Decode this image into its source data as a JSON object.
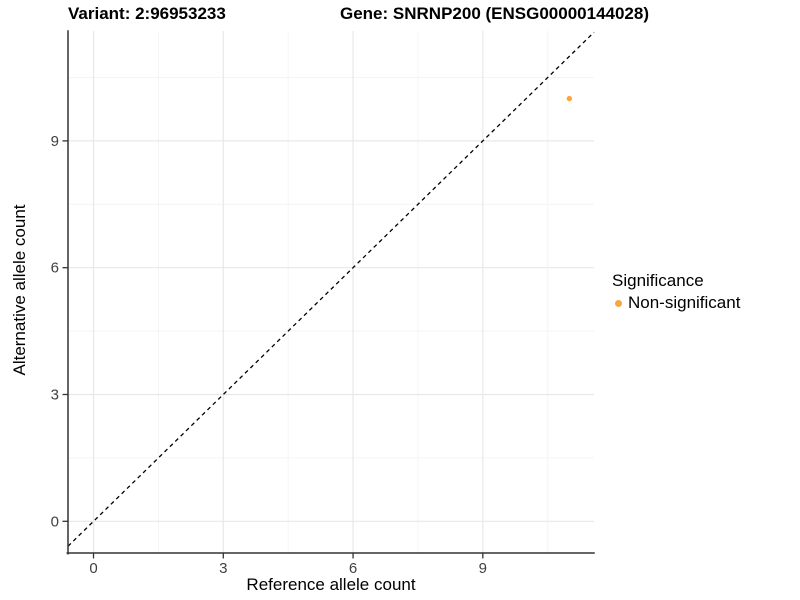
{
  "header": {
    "variant_title": "Variant: 2:96953233",
    "gene_title": "Gene: SNRNP200 (ENSG00000144028)"
  },
  "chart_data": {
    "type": "scatter",
    "title_left": "Variant: 2:96953233",
    "title_right": "Gene: SNRNP200 (ENSG00000144028)",
    "xlabel": "Reference allele count",
    "ylabel": "Alternative allele count",
    "x_ticks": [
      0,
      3,
      6,
      9
    ],
    "y_ticks": [
      0,
      3,
      6,
      9
    ],
    "x_minor_ticks": [
      1.5,
      4.5,
      7.5,
      10.5
    ],
    "y_minor_ticks": [
      1.5,
      4.5,
      7.5,
      10.5
    ],
    "xlim": [
      -0.59,
      11.57
    ],
    "ylim": [
      -0.75,
      11.6
    ],
    "grid": true,
    "identity_line": {
      "style": "dashed",
      "equation": "y = x",
      "from": -0.59,
      "to": 11.57
    },
    "points": [
      {
        "x": 11,
        "y": 10,
        "series": "Non-significant"
      }
    ],
    "legend": {
      "title": "Significance",
      "position": "right",
      "items": [
        {
          "label": "Non-significant",
          "color": "#FAA53F"
        }
      ]
    },
    "style": {
      "point_color": "#FAA53F",
      "axis_line_color": "#333333",
      "tick_text_color": "#404040",
      "grid_major_color": "#E8E8E8",
      "grid_minor_color": "#F4F4F4",
      "identity_line_color": "#000000"
    }
  }
}
